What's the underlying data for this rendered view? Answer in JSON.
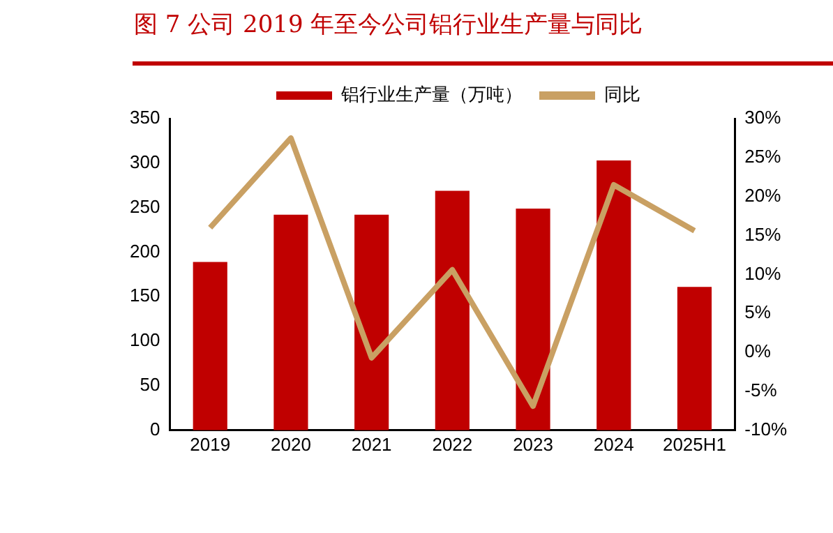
{
  "chart_data": {
    "type": "bar",
    "title": "图 7 公司 2019 年至今公司铝行业生产量与同比",
    "categories": [
      "2019",
      "2020",
      "2021",
      "2022",
      "2023",
      "2024",
      "2025H1"
    ],
    "series": [
      {
        "name": "铝行业生产量（万吨）",
        "color": "#c00000",
        "values": [
          189,
          242,
          242,
          269,
          249,
          303,
          161
        ]
      },
      {
        "name": "同比",
        "type": "line",
        "axis": "y2",
        "color": "#c9a063",
        "values": [
          16.0,
          27.5,
          -0.7,
          10.6,
          -6.9,
          21.5,
          15.6
        ]
      }
    ],
    "ylim": [
      0,
      350
    ],
    "yticks": [
      0,
      50,
      100,
      150,
      200,
      250,
      300,
      350
    ],
    "y2lim": [
      -10,
      30
    ],
    "y2ticks": [
      {
        "value": -10,
        "label": "-10%"
      },
      {
        "value": -5,
        "label": "-5%"
      },
      {
        "value": 0,
        "label": "0%"
      },
      {
        "value": 5,
        "label": "5%"
      },
      {
        "value": 10,
        "label": "10%"
      },
      {
        "value": 15,
        "label": "15%"
      },
      {
        "value": 20,
        "label": "20%"
      },
      {
        "value": 25,
        "label": "25%"
      },
      {
        "value": 30,
        "label": "30%"
      }
    ],
    "grid": false,
    "legend": "top",
    "marker": "none"
  }
}
